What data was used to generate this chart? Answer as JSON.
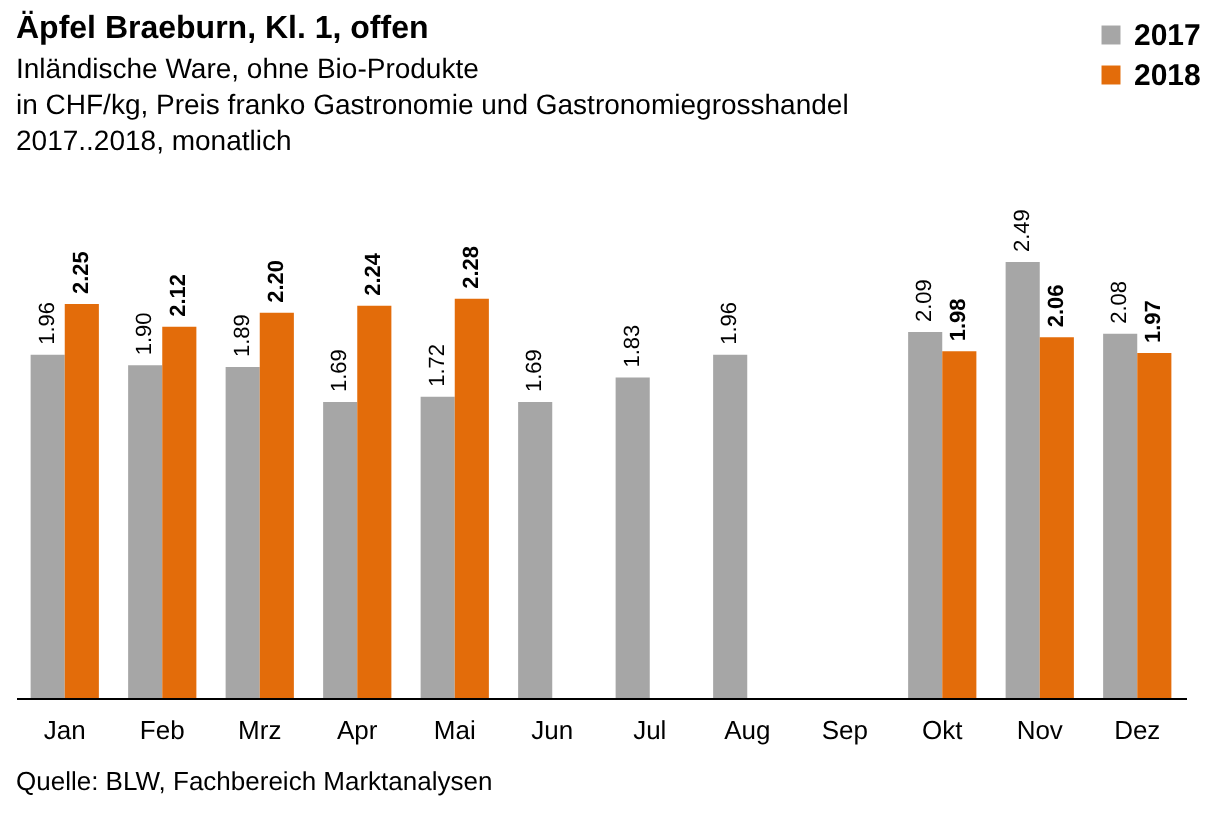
{
  "chart_data": {
    "type": "bar",
    "title": "Äpfel Braeburn, Kl. 1, offen",
    "subtitle": "Inländische Ware, ohne Bio-Produkte\nin CHF/kg, Preis franko Gastronomie und Gastronomiegrosshandel\n2017..2018, monatlich",
    "categories": [
      "Jan",
      "Feb",
      "Mrz",
      "Apr",
      "Mai",
      "Jun",
      "Jul",
      "Aug",
      "Sep",
      "Okt",
      "Nov",
      "Dez"
    ],
    "series": [
      {
        "name": "2017",
        "color": "#a6a6a6",
        "values": [
          1.96,
          1.9,
          1.89,
          1.69,
          1.72,
          1.69,
          1.83,
          1.96,
          null,
          2.09,
          2.49,
          2.08
        ],
        "value_labels": [
          "1.96",
          "1.90",
          "1.89",
          "1.69",
          "1.72",
          "1.69",
          "1.83",
          "1.96",
          null,
          "2.09",
          "2.49",
          "2.08"
        ]
      },
      {
        "name": "2018",
        "color": "#e36c0a",
        "values": [
          2.25,
          2.12,
          2.2,
          2.24,
          2.28,
          null,
          null,
          null,
          null,
          1.98,
          2.06,
          1.97
        ],
        "value_labels": [
          "2.25",
          "2.12",
          "2.20",
          "2.24",
          "2.28",
          null,
          null,
          null,
          null,
          "1.98",
          "2.06",
          "1.97"
        ]
      }
    ],
    "tick_labels": "x",
    "legend": "top right",
    "annotations": [
      "Quelle: BLW, Fachbereich Marktanalysen"
    ]
  }
}
